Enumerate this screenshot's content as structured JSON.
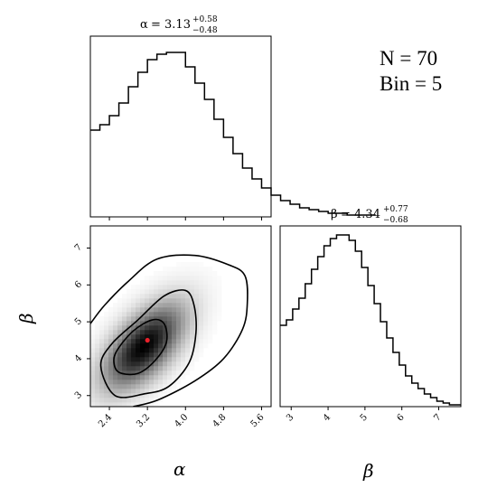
{
  "chart_data": [
    {
      "type": "histogram",
      "panel": "alpha-marginal",
      "title_symbol": "α",
      "title_value": "= 3.13",
      "title_upper": "+0.58",
      "title_lower": "−0.48",
      "xlim": [
        2.0,
        5.8
      ],
      "bin_width": 0.2,
      "bin_edges_start": 2.0,
      "counts": [
        0.48,
        0.51,
        0.56,
        0.63,
        0.72,
        0.8,
        0.87,
        0.9,
        0.91,
        0.91,
        0.83,
        0.74,
        0.65,
        0.54,
        0.44,
        0.35,
        0.27,
        0.21,
        0.16,
        0.12,
        0.09,
        0.07,
        0.05,
        0.04,
        0.03,
        0.02,
        0.02,
        0.01,
        0.01,
        0.01
      ]
    },
    {
      "type": "histogram",
      "panel": "beta-marginal",
      "title_symbol": "β",
      "title_value": "= 4.34",
      "title_upper": "+0.77",
      "title_lower": "−0.68",
      "xlim": [
        2.7,
        7.6
      ],
      "bin_width": 0.17,
      "bin_edges_start": 2.7,
      "counts": [
        0.45,
        0.48,
        0.54,
        0.6,
        0.68,
        0.76,
        0.83,
        0.89,
        0.93,
        0.95,
        0.95,
        0.92,
        0.86,
        0.77,
        0.67,
        0.57,
        0.47,
        0.38,
        0.3,
        0.23,
        0.17,
        0.13,
        0.1,
        0.07,
        0.05,
        0.03,
        0.02,
        0.01,
        0.01
      ]
    },
    {
      "type": "heatmap",
      "panel": "alpha-beta-joint",
      "xlim": [
        2.0,
        5.8
      ],
      "ylim": [
        2.7,
        7.6
      ],
      "x_ticks": [
        "2.4",
        "3.2",
        "4.0",
        "4.8",
        "5.6"
      ],
      "x_tick_values": [
        2.4,
        3.2,
        4.0,
        4.8,
        5.6
      ],
      "y_ticks": [
        "3",
        "4",
        "5",
        "6",
        "7"
      ],
      "y_tick_values": [
        3,
        4,
        5,
        6,
        7
      ],
      "peak": [
        3.13,
        4.34
      ],
      "best_fit_point": [
        3.2,
        4.5
      ],
      "best_fit_color": "#e8202a",
      "correlation": 0.6,
      "contours": [
        [
          [
            3.0,
            3.6
          ],
          [
            3.36,
            3.95
          ],
          [
            3.6,
            4.45
          ],
          [
            3.55,
            4.95
          ],
          [
            3.3,
            5.05
          ],
          [
            2.9,
            4.75
          ],
          [
            2.55,
            4.2
          ],
          [
            2.5,
            3.85
          ],
          [
            2.62,
            3.62
          ]
        ],
        [
          [
            3.15,
            3.05
          ],
          [
            3.65,
            3.25
          ],
          [
            4.08,
            3.9
          ],
          [
            4.22,
            4.7
          ],
          [
            4.18,
            5.45
          ],
          [
            4.0,
            5.85
          ],
          [
            3.55,
            5.7
          ],
          [
            3.0,
            5.05
          ],
          [
            2.45,
            4.4
          ],
          [
            2.22,
            3.8
          ],
          [
            2.52,
            3.0
          ]
        ],
        [
          [
            2.9,
            2.7
          ],
          [
            3.42,
            2.88
          ],
          [
            4.2,
            3.4
          ],
          [
            4.8,
            4.0
          ],
          [
            5.2,
            4.8
          ],
          [
            5.3,
            5.5
          ],
          [
            5.25,
            6.25
          ],
          [
            4.9,
            6.55
          ],
          [
            4.2,
            6.8
          ],
          [
            3.4,
            6.7
          ],
          [
            2.8,
            6.1
          ],
          [
            2.3,
            5.45
          ],
          [
            2.0,
            4.95
          ]
        ]
      ]
    }
  ],
  "axes": {
    "x_label": "α",
    "y_label": "β",
    "beta_bottom_label": "β",
    "beta_x_ticks": [
      "3",
      "4",
      "5",
      "6",
      "7"
    ],
    "beta_x_tick_values": [
      3,
      4,
      5,
      6,
      7
    ]
  },
  "annotation": {
    "line1": "N = 70",
    "line2": "Bin = 5"
  }
}
